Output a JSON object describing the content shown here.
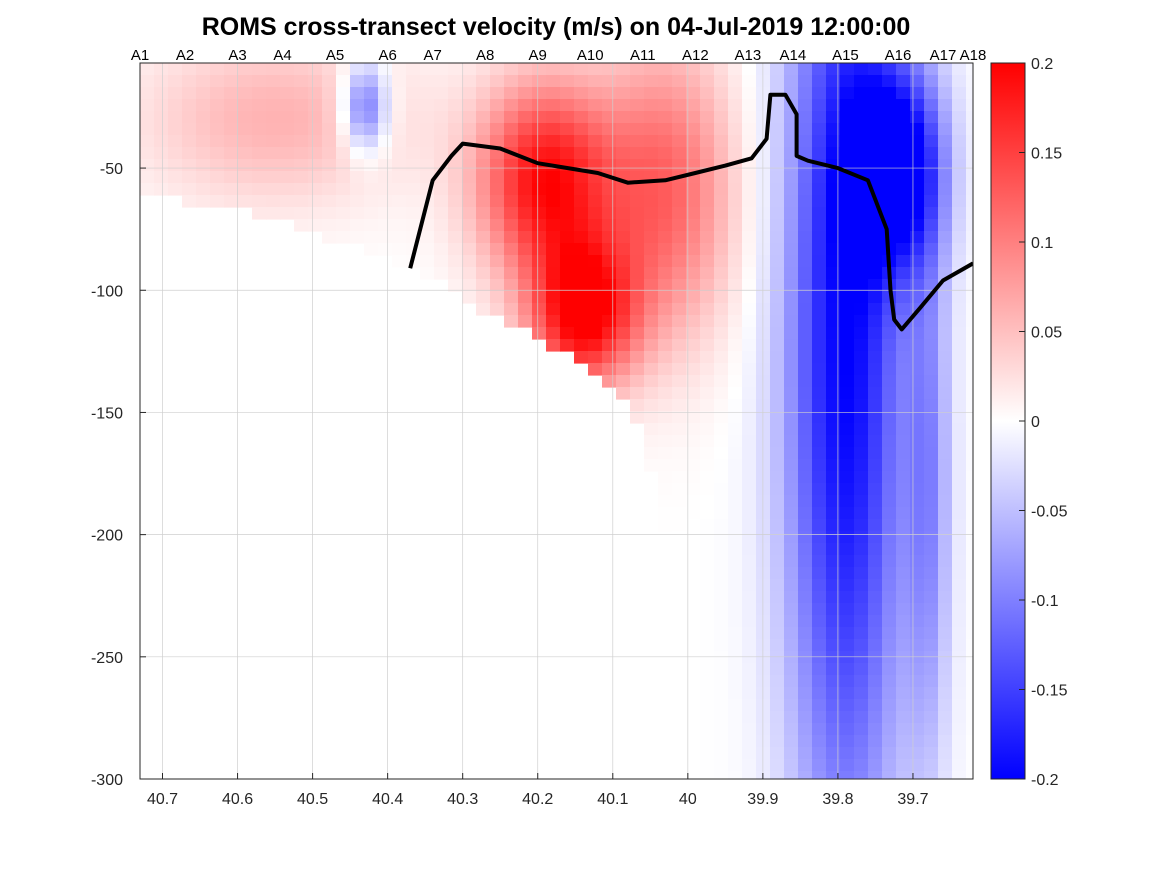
{
  "chart_data": {
    "type": "heatmap",
    "title": "ROMS cross-transect velocity (m/s) on 04-Jul-2019 12:00:00",
    "xlabel": "",
    "ylabel": "",
    "x_ticks": [
      "40.7",
      "40.6",
      "40.5",
      "40.4",
      "40.3",
      "40.2",
      "40.1",
      "40",
      "39.9",
      "39.8",
      "39.7"
    ],
    "x_tick_values": [
      40.7,
      40.6,
      40.5,
      40.4,
      40.3,
      40.2,
      40.1,
      40.0,
      39.9,
      39.8,
      39.7
    ],
    "y_ticks": [
      "-50",
      "-100",
      "-150",
      "-200",
      "-250",
      "-300"
    ],
    "y_tick_values": [
      -50,
      -100,
      -150,
      -200,
      -250,
      -300
    ],
    "xlim": [
      40.73,
      39.62
    ],
    "ylim": [
      -300,
      -7
    ],
    "x_reversed": true,
    "grid": true,
    "stations": [
      {
        "label": "A1",
        "lat": 40.73
      },
      {
        "label": "A2",
        "lat": 40.67
      },
      {
        "label": "A3",
        "lat": 40.6
      },
      {
        "label": "A4",
        "lat": 40.54
      },
      {
        "label": "A5",
        "lat": 40.47
      },
      {
        "label": "A6",
        "lat": 40.4
      },
      {
        "label": "A7",
        "lat": 40.34
      },
      {
        "label": "A8",
        "lat": 40.27
      },
      {
        "label": "A9",
        "lat": 40.2
      },
      {
        "label": "A10",
        "lat": 40.13
      },
      {
        "label": "A11",
        "lat": 40.06
      },
      {
        "label": "A12",
        "lat": 39.99
      },
      {
        "label": "A13",
        "lat": 39.92
      },
      {
        "label": "A14",
        "lat": 39.86
      },
      {
        "label": "A15",
        "lat": 39.79
      },
      {
        "label": "A16",
        "lat": 39.72
      },
      {
        "label": "A17",
        "lat": 39.66
      },
      {
        "label": "A18",
        "lat": 39.62
      }
    ],
    "colorbar": {
      "ticks": [
        "0.2",
        "0.15",
        "0.1",
        "0.05",
        "0",
        "-0.05",
        "-0.1",
        "-0.15",
        "-0.2"
      ],
      "tick_values": [
        0.2,
        0.15,
        0.1,
        0.05,
        0,
        -0.05,
        -0.1,
        -0.15,
        -0.2
      ],
      "clim": [
        -0.2,
        0.2
      ],
      "colormap": "blue-white-red",
      "color_min": "#0000ff",
      "color_mid": "#ffffff",
      "color_max": "#ff0000"
    },
    "bathymetry_bottom": [
      {
        "lat": 40.73,
        "depth": -62
      },
      {
        "lat": 40.65,
        "depth": -64
      },
      {
        "lat": 40.6,
        "depth": -66
      },
      {
        "lat": 40.5,
        "depth": -76
      },
      {
        "lat": 40.4,
        "depth": -87
      },
      {
        "lat": 40.33,
        "depth": -96
      },
      {
        "lat": 40.28,
        "depth": -107
      },
      {
        "lat": 40.2,
        "depth": -120
      },
      {
        "lat": 40.15,
        "depth": -128
      },
      {
        "lat": 40.1,
        "depth": -140
      },
      {
        "lat": 40.06,
        "depth": -160
      },
      {
        "lat": 40.03,
        "depth": -200
      },
      {
        "lat": 40.01,
        "depth": -250
      },
      {
        "lat": 39.995,
        "depth": -300
      }
    ],
    "velocity_features": [
      {
        "lat": 40.19,
        "depth": -55,
        "velocity": 0.19,
        "spread_lat": 0.09,
        "spread_depth": 40
      },
      {
        "lat": 40.14,
        "depth": -110,
        "velocity": 0.2,
        "spread_lat": 0.07,
        "spread_depth": 30
      },
      {
        "lat": 40.03,
        "depth": -60,
        "velocity": 0.12,
        "spread_lat": 0.09,
        "spread_depth": 60
      },
      {
        "lat": 40.55,
        "depth": -30,
        "velocity": 0.06,
        "spread_lat": 0.18,
        "spread_depth": 35
      },
      {
        "lat": 40.43,
        "depth": -25,
        "velocity": -0.13,
        "spread_lat": 0.03,
        "spread_depth": 18
      },
      {
        "lat": 39.79,
        "depth": -120,
        "velocity": -0.2,
        "spread_lat": 0.08,
        "spread_depth": 220
      },
      {
        "lat": 39.72,
        "depth": -50,
        "velocity": -0.2,
        "spread_lat": 0.06,
        "spread_depth": 40
      },
      {
        "lat": 39.68,
        "depth": -180,
        "velocity": -0.08,
        "spread_lat": 0.03,
        "spread_depth": 120
      }
    ],
    "zero_contour": [
      {
        "lat": 40.37,
        "depth": -91
      },
      {
        "lat": 40.34,
        "depth": -55
      },
      {
        "lat": 40.315,
        "depth": -45
      },
      {
        "lat": 40.3,
        "depth": -40
      },
      {
        "lat": 40.25,
        "depth": -42
      },
      {
        "lat": 40.2,
        "depth": -48
      },
      {
        "lat": 40.16,
        "depth": -50
      },
      {
        "lat": 40.12,
        "depth": -52
      },
      {
        "lat": 40.08,
        "depth": -56
      },
      {
        "lat": 40.03,
        "depth": -55
      },
      {
        "lat": 39.99,
        "depth": -52
      },
      {
        "lat": 39.95,
        "depth": -49
      },
      {
        "lat": 39.915,
        "depth": -46
      },
      {
        "lat": 39.895,
        "depth": -38
      },
      {
        "lat": 39.89,
        "depth": -20
      },
      {
        "lat": 39.87,
        "depth": -20
      },
      {
        "lat": 39.855,
        "depth": -28
      },
      {
        "lat": 39.855,
        "depth": -45
      },
      {
        "lat": 39.84,
        "depth": -47
      },
      {
        "lat": 39.8,
        "depth": -50
      },
      {
        "lat": 39.76,
        "depth": -55
      },
      {
        "lat": 39.735,
        "depth": -75
      },
      {
        "lat": 39.73,
        "depth": -100
      },
      {
        "lat": 39.725,
        "depth": -112
      },
      {
        "lat": 39.715,
        "depth": -116
      },
      {
        "lat": 39.69,
        "depth": -107
      },
      {
        "lat": 39.66,
        "depth": -96
      },
      {
        "lat": 39.62,
        "depth": -89
      }
    ]
  }
}
